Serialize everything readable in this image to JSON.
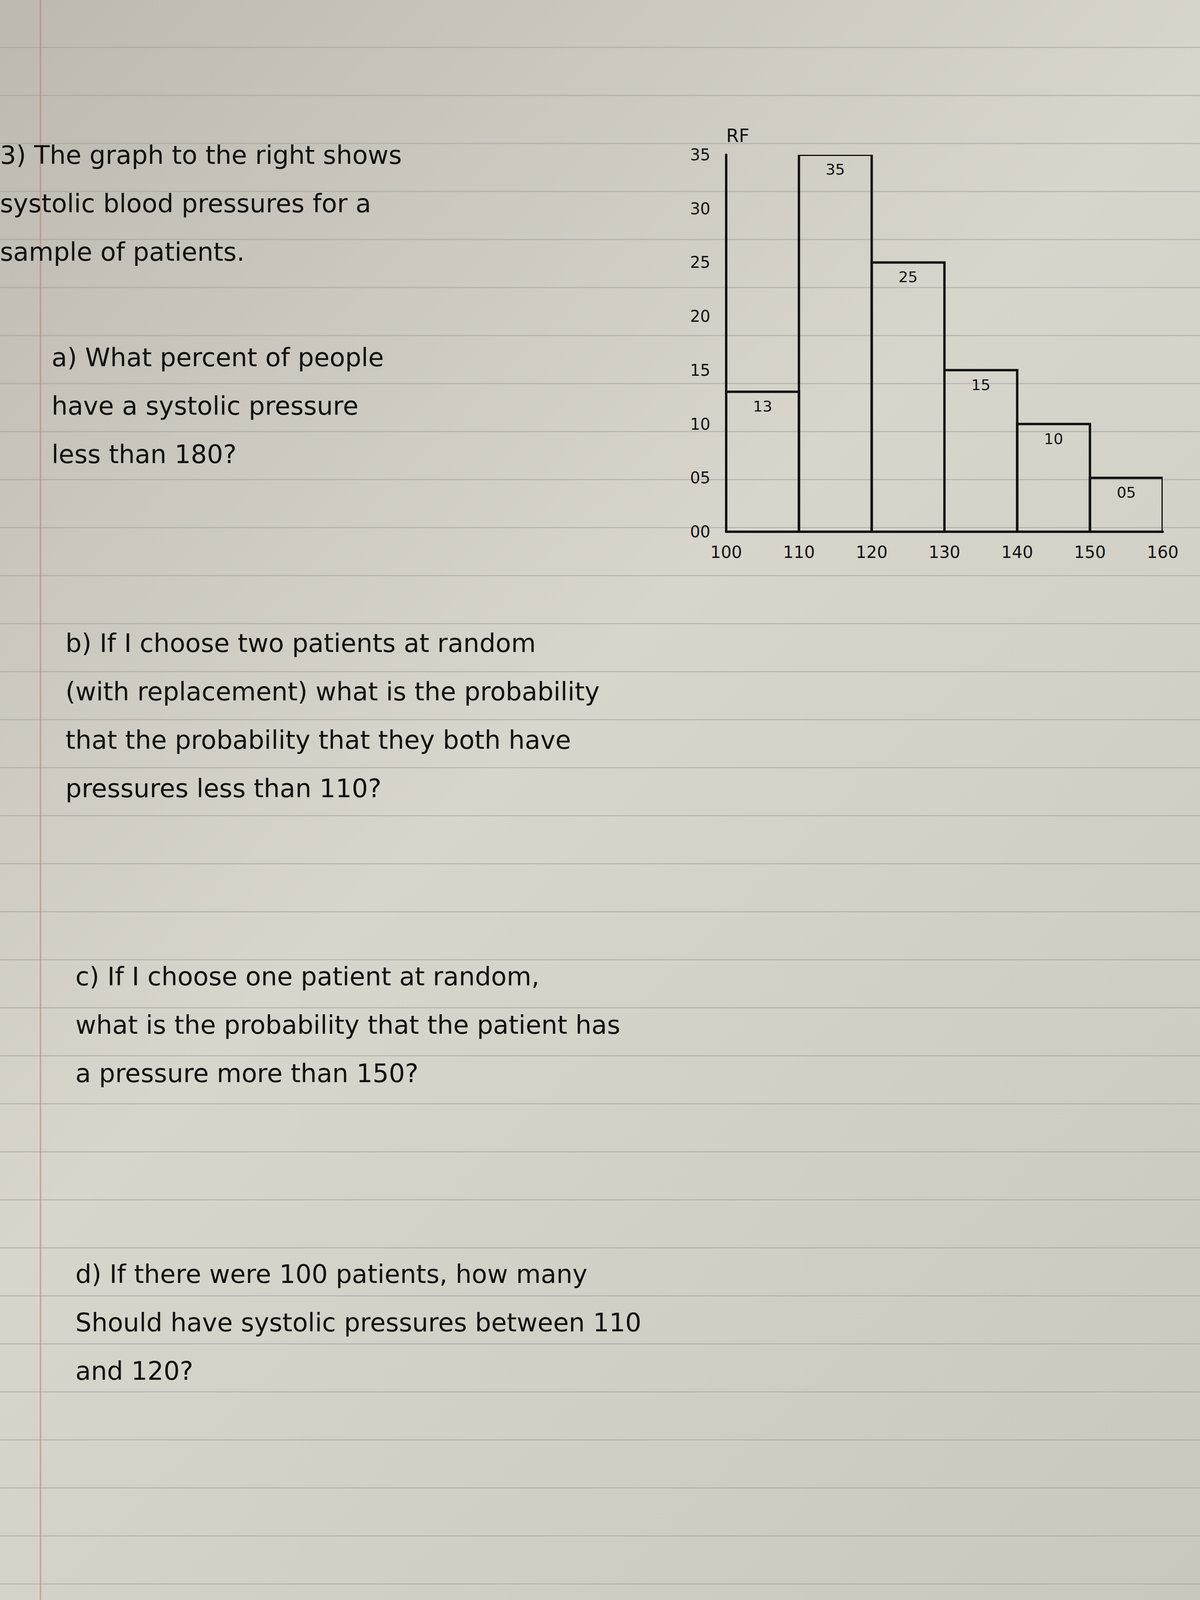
{
  "problem": {
    "number": "3)",
    "intro": [
      "The graph to the right shows",
      "systolic blood pressures for a",
      "sample of patients."
    ]
  },
  "questions": [
    {
      "lines": [
        "a) What percent of people",
        "have a systolic pressure",
        "less than 180?"
      ]
    },
    {
      "lines": [
        "b) If I choose two patients at random",
        "(with replacement) what is the probability",
        "that the probability that they both have",
        "pressures less than 110?"
      ]
    },
    {
      "lines": [
        "c) If I choose one patient at random,",
        "what is the probability that the patient has",
        "a pressure more than 150?"
      ]
    },
    {
      "lines": [
        "d) If there were 100 patients, how many",
        "Should have systolic pressures between 110",
        "and 120?"
      ]
    }
  ],
  "chart_data": {
    "type": "histogram",
    "y_label": "RF",
    "bins": [
      100,
      110,
      120,
      130,
      140,
      150,
      160
    ],
    "values": [
      13,
      35,
      25,
      15,
      10,
      5
    ],
    "value_labels": [
      "13",
      "35",
      "25",
      "15",
      "10",
      "05"
    ],
    "data_labels": true,
    "color": "#111111",
    "grid": false,
    "xlim": [
      100,
      160
    ],
    "xticks": [
      100,
      110,
      120,
      130,
      140,
      150,
      160
    ],
    "ylim": [
      0,
      35
    ],
    "yticks": [
      {
        "value": 0,
        "label": "00"
      },
      {
        "value": 5,
        "label": "05"
      },
      10,
      15,
      20,
      25,
      30,
      35
    ]
  }
}
